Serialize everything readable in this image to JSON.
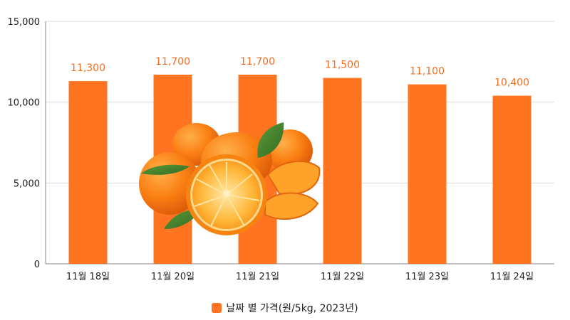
{
  "chart_data": {
    "type": "bar",
    "categories": [
      "11월 18일",
      "11월 20일",
      "11월 21일",
      "11월 22일",
      "11월 23일",
      "11월 24일"
    ],
    "series": [
      {
        "name": "날짜 별 가격(원/5kg, 2023년)",
        "values": [
          11300,
          11700,
          11700,
          11500,
          11100,
          10400
        ]
      }
    ],
    "data_labels": [
      "11,300",
      "11,700",
      "11,700",
      "11,500",
      "11,100",
      "10,400"
    ],
    "yticks": [
      "0",
      "5,000",
      "10,000",
      "15,000"
    ],
    "ylim": [
      0,
      15000
    ],
    "grid": true,
    "legend_position": "bottom-center",
    "colors": {
      "bar": "#FF7420",
      "label": "#F26D1F",
      "grid": "#DCDCDC",
      "axis": "#888888"
    },
    "illustration": "mandarin-oranges"
  }
}
